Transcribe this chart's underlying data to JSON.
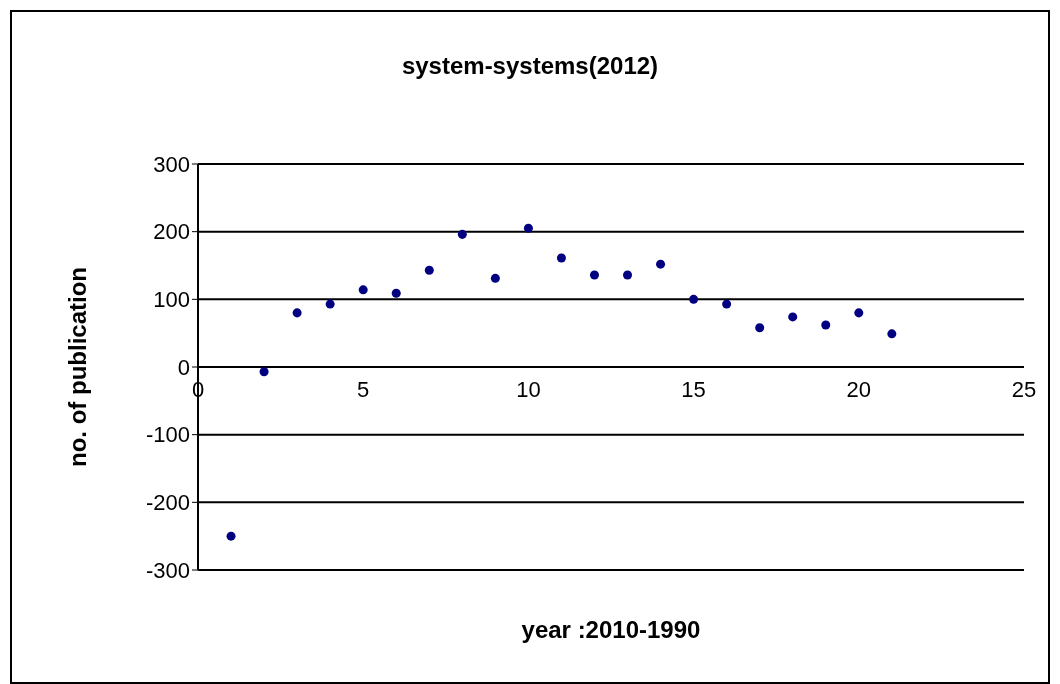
{
  "chart_data": {
    "type": "scatter",
    "title": "system-systems(2012)",
    "xlabel": "year :2010-1990",
    "ylabel": "no. of publication",
    "x": [
      1,
      2,
      3,
      4,
      5,
      6,
      7,
      8,
      9,
      10,
      11,
      12,
      13,
      14,
      15,
      16,
      17,
      18,
      19,
      20,
      21
    ],
    "values": [
      -250,
      -7,
      80,
      93,
      114,
      109,
      143,
      196,
      131,
      205,
      161,
      136,
      136,
      152,
      100,
      93,
      58,
      74,
      62,
      80,
      49
    ],
    "color": "#000080",
    "marker": "circle",
    "xlim": [
      0,
      25
    ],
    "xticks": [
      0,
      5,
      10,
      15,
      20,
      25
    ],
    "ylim": [
      -300,
      300
    ],
    "yticks": [
      -300,
      -200,
      -100,
      0,
      100,
      200,
      300
    ],
    "grid": "y"
  }
}
